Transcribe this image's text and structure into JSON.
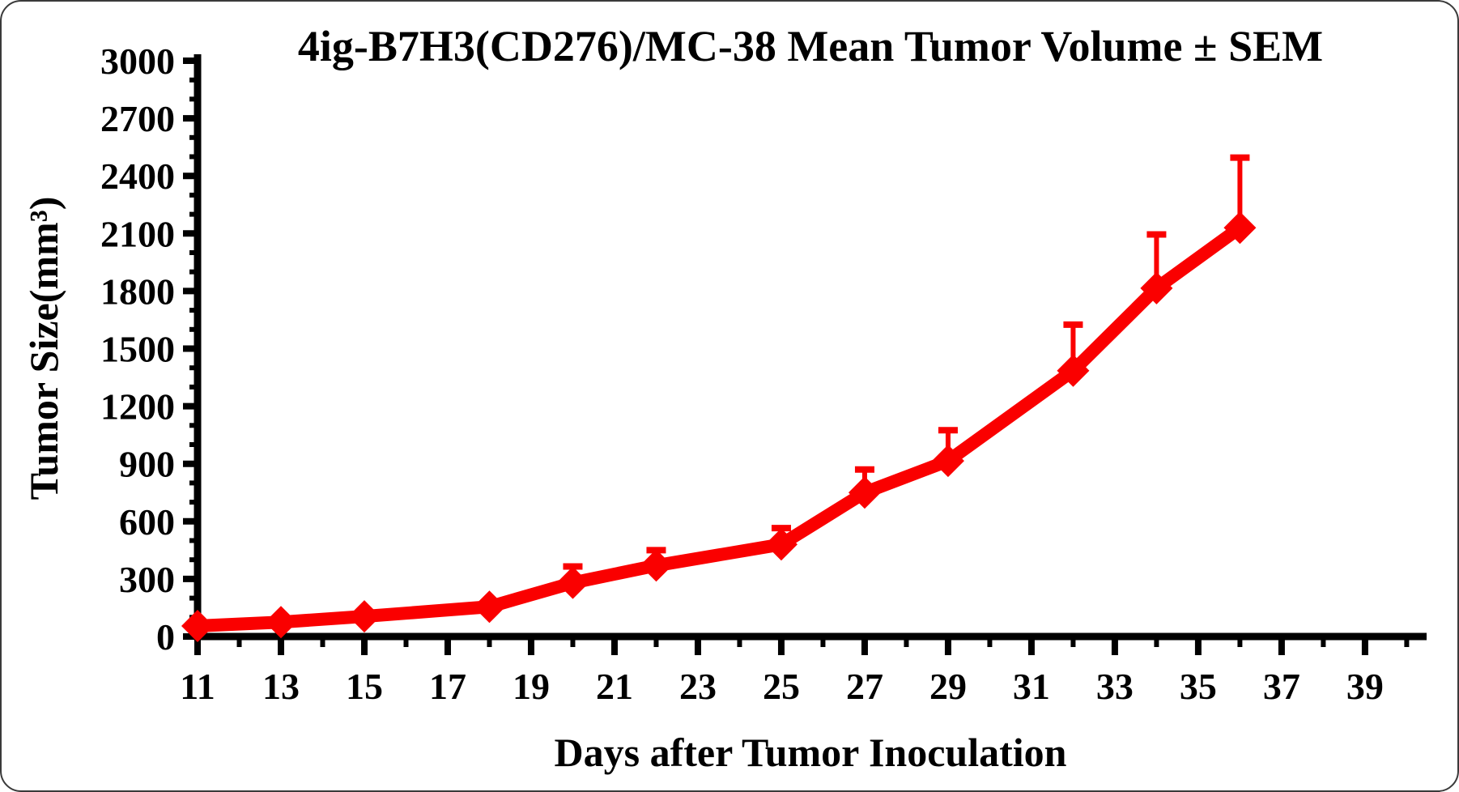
{
  "figure": {
    "background_color": "#ffffff",
    "border_color": "#3a3a3a"
  },
  "chart_data": {
    "type": "line",
    "title": "4ig-B7H3(CD276)/MC-38 Mean Tumor Volume ± SEM",
    "xlabel": "Days after Tumor Inoculation",
    "ylabel": "Tumor Size(mm³)",
    "series": [
      {
        "name": "MC-38 mean tumor volume",
        "x": [
          11,
          13,
          15,
          18,
          20,
          22,
          25,
          27,
          29,
          32,
          34,
          36
        ],
        "y": [
          55,
          75,
          105,
          155,
          280,
          370,
          480,
          750,
          915,
          1385,
          1815,
          2130
        ],
        "sem_upper": [
          0,
          0,
          0,
          0,
          85,
          80,
          85,
          120,
          160,
          240,
          280,
          365
        ],
        "color": "#FA0000",
        "marker": "diamond"
      }
    ],
    "xlim": [
      11,
      40.4
    ],
    "ylim": [
      0,
      3000
    ],
    "x_major_ticks": [
      11,
      13,
      15,
      17,
      19,
      21,
      23,
      25,
      27,
      29,
      31,
      33,
      35,
      37,
      39
    ],
    "x_minor_ticks": [
      12,
      14,
      16,
      18,
      20,
      22,
      24,
      26,
      28,
      30,
      32,
      34,
      36,
      38,
      40
    ],
    "y_major_ticks": [
      0,
      300,
      600,
      900,
      1200,
      1500,
      1800,
      2100,
      2400,
      2700,
      3000
    ],
    "y_minor_step": 100,
    "grid": false,
    "legend": "none",
    "axis_color": "#000000",
    "error_bars": "upper-SEM-only"
  }
}
